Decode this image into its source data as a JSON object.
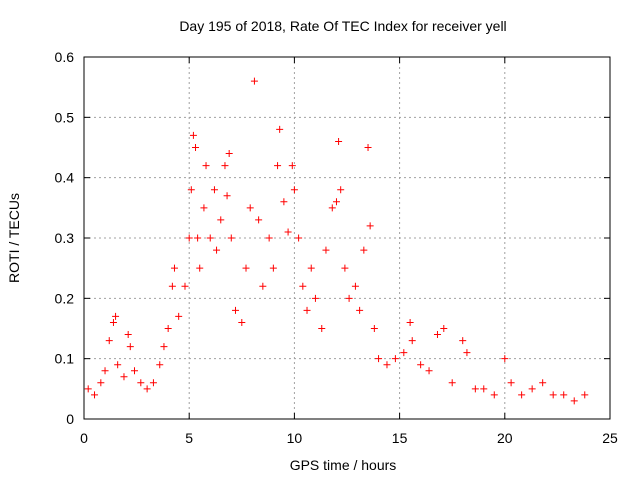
{
  "chart_data": {
    "type": "scatter",
    "title": "Day 195 of 2018, Rate Of TEC Index for receiver yell",
    "xlabel": "GPS time / hours",
    "ylabel": "ROTI / TECUs",
    "xlim": [
      0,
      25
    ],
    "ylim": [
      0,
      0.6
    ],
    "xticks": [
      0,
      5,
      10,
      15,
      20,
      25
    ],
    "xtick_labels": [
      "0",
      "5",
      "10",
      "15",
      "20",
      "25"
    ],
    "yticks": [
      0,
      0.1,
      0.2,
      0.3,
      0.4,
      0.5,
      0.6
    ],
    "ytick_labels": [
      "0",
      "0.1",
      "0.2",
      "0.3",
      "0.4",
      "0.5",
      "0.6"
    ],
    "grid": true,
    "marker": "+",
    "series": [
      {
        "name": "ROTI",
        "color": "#ff0000",
        "points": [
          [
            0.2,
            0.05
          ],
          [
            0.5,
            0.04
          ],
          [
            0.8,
            0.06
          ],
          [
            1.0,
            0.08
          ],
          [
            1.2,
            0.13
          ],
          [
            1.4,
            0.16
          ],
          [
            1.5,
            0.17
          ],
          [
            1.6,
            0.09
          ],
          [
            1.9,
            0.07
          ],
          [
            2.1,
            0.14
          ],
          [
            2.2,
            0.12
          ],
          [
            2.4,
            0.08
          ],
          [
            2.7,
            0.06
          ],
          [
            3.0,
            0.05
          ],
          [
            3.3,
            0.06
          ],
          [
            3.6,
            0.09
          ],
          [
            3.8,
            0.12
          ],
          [
            4.0,
            0.15
          ],
          [
            4.2,
            0.22
          ],
          [
            4.3,
            0.25
          ],
          [
            4.5,
            0.17
          ],
          [
            4.8,
            0.22
          ],
          [
            5.0,
            0.3
          ],
          [
            5.1,
            0.38
          ],
          [
            5.2,
            0.47
          ],
          [
            5.3,
            0.45
          ],
          [
            5.4,
            0.3
          ],
          [
            5.5,
            0.25
          ],
          [
            5.7,
            0.35
          ],
          [
            5.8,
            0.42
          ],
          [
            6.0,
            0.3
          ],
          [
            6.2,
            0.38
          ],
          [
            6.3,
            0.28
          ],
          [
            6.5,
            0.33
          ],
          [
            6.7,
            0.42
          ],
          [
            6.8,
            0.37
          ],
          [
            6.9,
            0.44
          ],
          [
            7.0,
            0.3
          ],
          [
            7.2,
            0.18
          ],
          [
            7.5,
            0.16
          ],
          [
            7.7,
            0.25
          ],
          [
            7.9,
            0.35
          ],
          [
            8.1,
            0.56
          ],
          [
            8.3,
            0.33
          ],
          [
            8.5,
            0.22
          ],
          [
            8.8,
            0.3
          ],
          [
            9.0,
            0.25
          ],
          [
            9.2,
            0.42
          ],
          [
            9.3,
            0.48
          ],
          [
            9.5,
            0.36
          ],
          [
            9.7,
            0.31
          ],
          [
            9.9,
            0.42
          ],
          [
            10.0,
            0.38
          ],
          [
            10.2,
            0.3
          ],
          [
            10.4,
            0.22
          ],
          [
            10.6,
            0.18
          ],
          [
            10.8,
            0.25
          ],
          [
            11.0,
            0.2
          ],
          [
            11.3,
            0.15
          ],
          [
            11.5,
            0.28
          ],
          [
            11.8,
            0.35
          ],
          [
            12.0,
            0.36
          ],
          [
            12.1,
            0.46
          ],
          [
            12.2,
            0.38
          ],
          [
            12.4,
            0.25
          ],
          [
            12.6,
            0.2
          ],
          [
            12.9,
            0.22
          ],
          [
            13.1,
            0.18
          ],
          [
            13.3,
            0.28
          ],
          [
            13.5,
            0.45
          ],
          [
            13.6,
            0.32
          ],
          [
            13.8,
            0.15
          ],
          [
            14.0,
            0.1
          ],
          [
            14.4,
            0.09
          ],
          [
            14.8,
            0.1
          ],
          [
            15.2,
            0.11
          ],
          [
            15.5,
            0.16
          ],
          [
            15.6,
            0.13
          ],
          [
            16.0,
            0.09
          ],
          [
            16.4,
            0.08
          ],
          [
            16.8,
            0.14
          ],
          [
            17.1,
            0.15
          ],
          [
            17.5,
            0.06
          ],
          [
            18.0,
            0.13
          ],
          [
            18.2,
            0.11
          ],
          [
            18.6,
            0.05
          ],
          [
            19.0,
            0.05
          ],
          [
            19.5,
            0.04
          ],
          [
            20.0,
            0.1
          ],
          [
            20.3,
            0.06
          ],
          [
            20.8,
            0.04
          ],
          [
            21.3,
            0.05
          ],
          [
            21.8,
            0.06
          ],
          [
            22.3,
            0.04
          ],
          [
            22.8,
            0.04
          ],
          [
            23.3,
            0.03
          ],
          [
            23.8,
            0.04
          ]
        ]
      }
    ]
  }
}
